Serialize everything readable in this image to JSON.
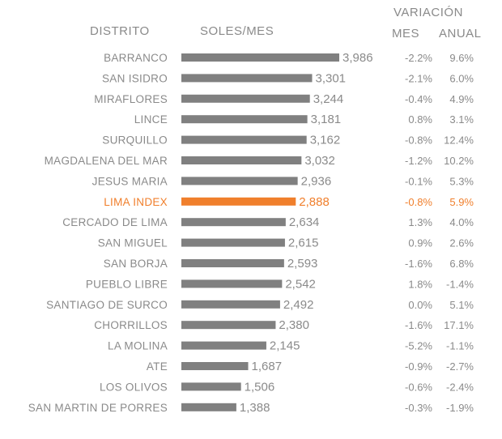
{
  "headers": {
    "district": "DISTRITO",
    "value": "SOLES/MES",
    "variation": "VARIACIÓN",
    "month": "MES",
    "annual": "ANUAL"
  },
  "colors": {
    "bar": "#808080",
    "highlight": "#f07f2c",
    "text": "#8a8a8a"
  },
  "chart_data": {
    "type": "bar",
    "orientation": "horizontal",
    "highlight": "LIMA INDEX",
    "xlim": [
      0,
      3986
    ],
    "categories": [
      "BARRANCO",
      "SAN ISIDRO",
      "MIRAFLORES",
      "LINCE",
      "SURQUILLO",
      "MAGDALENA DEL MAR",
      "JESUS MARIA",
      "LIMA INDEX",
      "CERCADO DE LIMA",
      "SAN MIGUEL",
      "SAN BORJA",
      "PUEBLO LIBRE",
      "SANTIAGO DE SURCO",
      "CHORRILLOS",
      "LA MOLINA",
      "ATE",
      "LOS OLIVOS",
      "SAN MARTIN DE PORRES"
    ],
    "values": [
      3986,
      3301,
      3244,
      3181,
      3162,
      3032,
      2936,
      2888,
      2634,
      2615,
      2593,
      2542,
      2492,
      2380,
      2145,
      1687,
      1506,
      1388
    ],
    "value_labels": [
      "3,986",
      "3,301",
      "3,244",
      "3,181",
      "3,162",
      "3,032",
      "2,936",
      "2,888",
      "2,634",
      "2,615",
      "2,593",
      "2,542",
      "2,492",
      "2,380",
      "2,145",
      "1,687",
      "1,506",
      "1,388"
    ],
    "mes": [
      "-2.2%",
      "-2.1%",
      "-0.4%",
      "0.8%",
      "-0.8%",
      "-1.2%",
      "-0.1%",
      "-0.8%",
      "1.3%",
      "0.9%",
      "-1.6%",
      "1.8%",
      "0.0%",
      "-1.6%",
      "-5.2%",
      "-0.9%",
      "-0.6%",
      "-0.3%"
    ],
    "anual": [
      "9.6%",
      "6.0%",
      "4.9%",
      "3.1%",
      "12.4%",
      "10.2%",
      "5.3%",
      "5.9%",
      "4.0%",
      "2.6%",
      "6.8%",
      "-1.4%",
      "5.1%",
      "17.1%",
      "-1.1%",
      "-2.7%",
      "-2.4%",
      "-1.9%"
    ]
  }
}
